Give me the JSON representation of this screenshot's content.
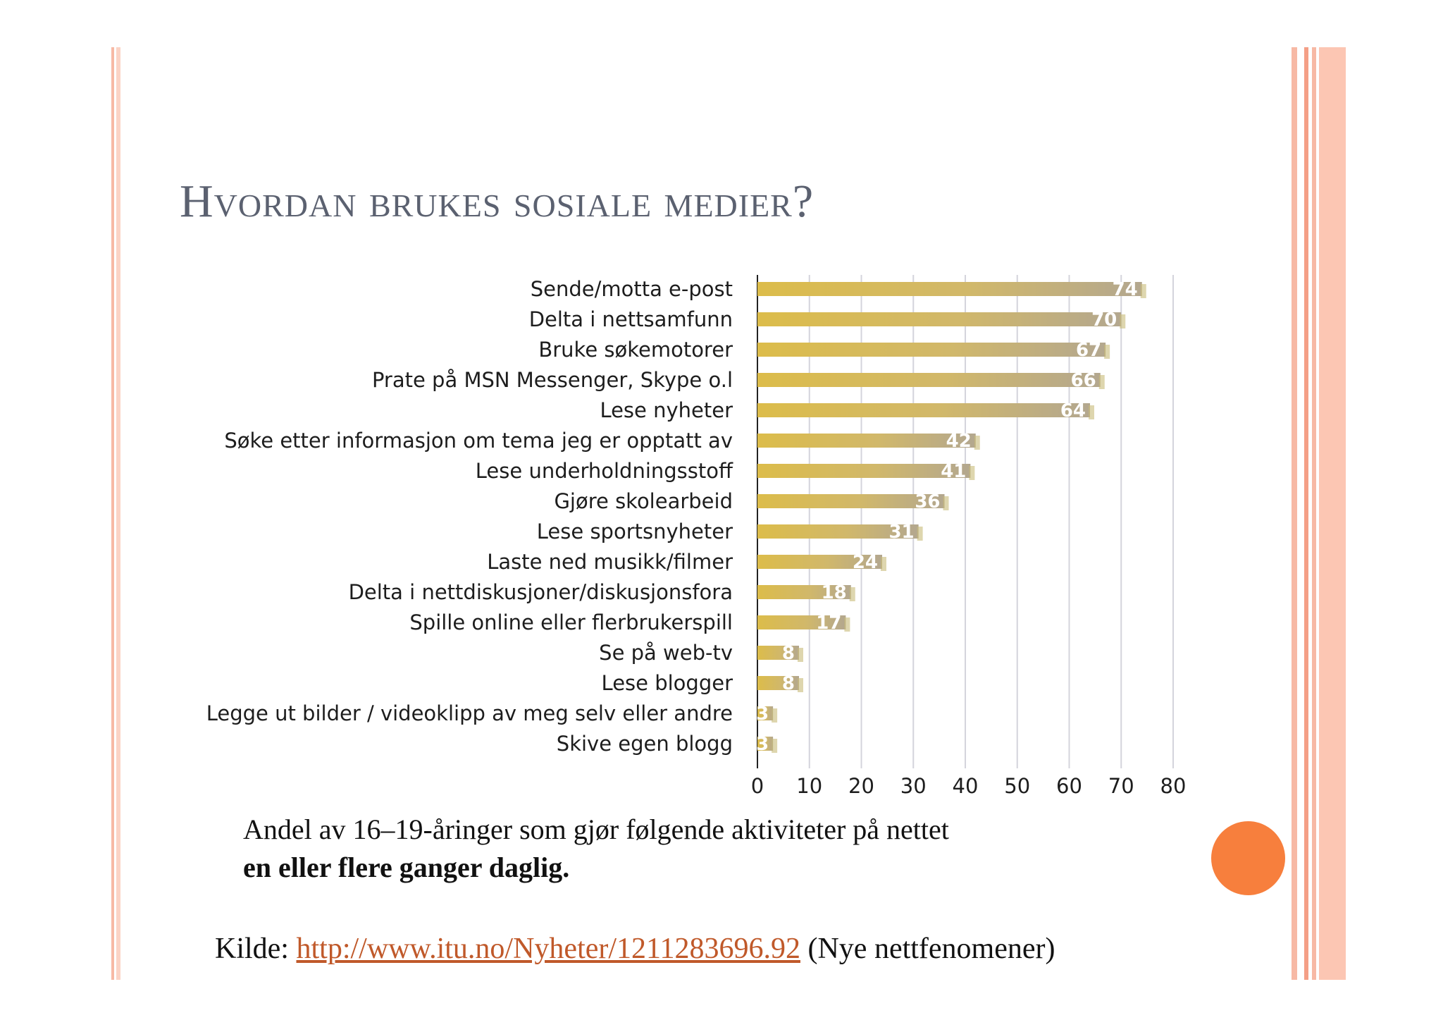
{
  "slide": {
    "title": "Hvordan brukes sosiale medier?",
    "caption_line1": "Andel av 16–19-åringer som gjør følgende aktiviteter på nettet",
    "caption_line2": "en eller flere ganger daglig.",
    "source_prefix": "Kilde: ",
    "source_link": "http://www.itu.no/Nyheter/1211283696.92",
    "source_suffix": " (Nye nettfenomener)"
  },
  "colors": {
    "accent_stripe": "#f7b9a5",
    "dot": "#f77f3d",
    "bar_left": "#d9b94c",
    "bar_right": "#b9a98c",
    "title": "#5b6170"
  },
  "chart_data": {
    "type": "bar",
    "orientation": "horizontal",
    "categories": [
      "Sende/motta e-post",
      "Delta i nettsamfunn",
      "Bruke søkemotorer",
      "Prate på MSN Messenger, Skype o.l",
      "Lese nyheter",
      "Søke etter informasjon om tema jeg er opptatt av",
      "Lese underholdningsstoff",
      "Gjøre skolearbeid",
      "Lese sportsnyheter",
      "Laste ned  musikk/filmer",
      "Delta i nettdiskusjoner/diskusjonsfora",
      "Spille online eller flerbrukerspill",
      "Se på web-tv",
      "Lese blogger",
      "Legge ut bilder / videoklipp av meg selv eller andre",
      "Skive egen blogg"
    ],
    "values": [
      74,
      70,
      67,
      66,
      64,
      42,
      41,
      36,
      31,
      24,
      18,
      17,
      8,
      8,
      3,
      3
    ],
    "value_labels": [
      "74",
      "70",
      "67",
      "66",
      "64",
      "42",
      "41",
      "36",
      "31",
      "24",
      "18",
      "17",
      "8",
      "8",
      "3",
      "3"
    ],
    "xlim": [
      0,
      80
    ],
    "xticks": [
      0,
      10,
      20,
      30,
      40,
      50,
      60,
      70,
      80
    ],
    "xtick_labels": [
      "0",
      "10",
      "20",
      "30",
      "40",
      "50",
      "60",
      "70",
      "80"
    ],
    "grid": true
  }
}
